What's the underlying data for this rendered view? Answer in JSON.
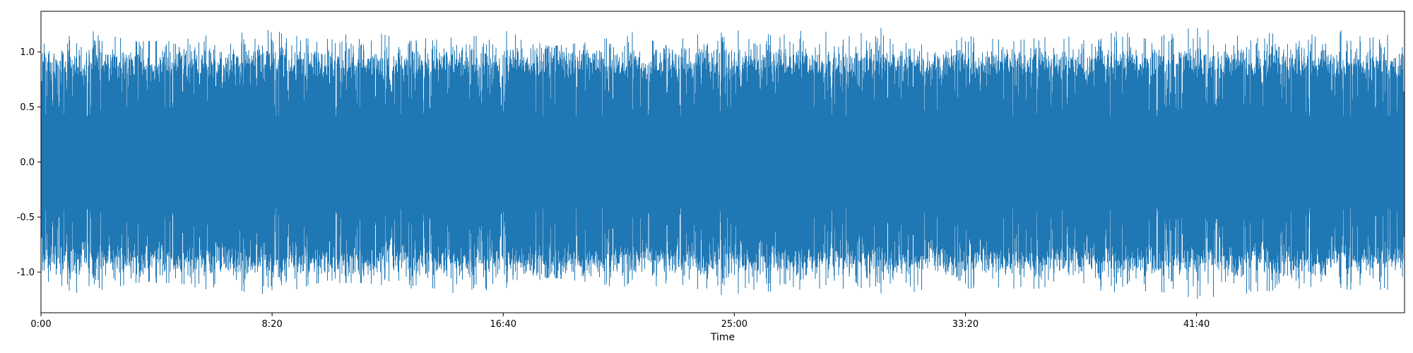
{
  "chart_data": {
    "type": "line",
    "title": "",
    "xlabel": "Time",
    "ylabel": "",
    "x_unit": "seconds",
    "xlim": [
      0,
      2950
    ],
    "ylim": [
      -1.37,
      1.37
    ],
    "xticks": [
      {
        "value": 0,
        "label": "0:00"
      },
      {
        "value": 500,
        "label": "8:20"
      },
      {
        "value": 1000,
        "label": "16:40"
      },
      {
        "value": 1500,
        "label": "25:00"
      },
      {
        "value": 2000,
        "label": "33:20"
      },
      {
        "value": 2500,
        "label": "41:40"
      }
    ],
    "yticks": [
      {
        "value": 1.0,
        "label": "1.0"
      },
      {
        "value": 0.5,
        "label": "0.5"
      },
      {
        "value": 0.0,
        "label": "0.0"
      },
      {
        "value": -0.5,
        "label": "-0.5"
      },
      {
        "value": -1.0,
        "label": "-1.0"
      }
    ],
    "grid": false,
    "legend": "none",
    "colors": {
      "series": "#1f77b4",
      "axes": "#000000",
      "background": "#ffffff"
    },
    "series": [
      {
        "signal": "dense oscillating waveform",
        "envelope": {
          "x": [
            0,
            100,
            200,
            300,
            400,
            500,
            600,
            700,
            800,
            900,
            1000,
            1100,
            1200,
            1300,
            1400,
            1500,
            1600,
            1700,
            1800,
            1900,
            2000,
            2100,
            2200,
            2300,
            2400,
            2500,
            2600,
            2700,
            2800,
            2950
          ],
          "max": [
            1.25,
            1.2,
            1.1,
            1.1,
            1.22,
            1.2,
            1.1,
            1.2,
            1.1,
            1.2,
            1.2,
            1.05,
            1.1,
            1.2,
            1.15,
            1.2,
            1.15,
            1.25,
            1.25,
            1.2,
            1.15,
            1.1,
            1.15,
            1.2,
            1.15,
            1.25,
            1.2,
            1.15,
            1.2,
            1.15
          ],
          "min": [
            -1.25,
            -1.2,
            -1.1,
            -1.1,
            -1.22,
            -1.22,
            -1.1,
            -1.1,
            -1.15,
            -1.2,
            -1.15,
            -1.05,
            -1.1,
            -1.2,
            -1.2,
            -1.25,
            -1.2,
            -1.25,
            -1.25,
            -1.2,
            -1.15,
            -1.15,
            -1.15,
            -1.2,
            -1.2,
            -1.25,
            -1.2,
            -1.15,
            -1.15,
            -1.2
          ]
        }
      }
    ]
  }
}
